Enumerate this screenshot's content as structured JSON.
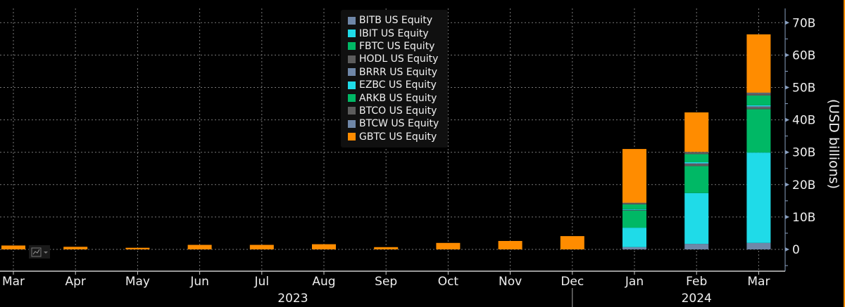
{
  "chart_data": {
    "type": "bar",
    "stacked": true,
    "categories": [
      "Mar",
      "Apr",
      "May",
      "Jun",
      "Jul",
      "Aug",
      "Sep",
      "Oct",
      "Nov",
      "Dec",
      "Jan",
      "Feb",
      "Mar"
    ],
    "year_labels": [
      {
        "label": "2023",
        "span": [
          "Mar",
          "Dec"
        ]
      },
      {
        "label": "2024",
        "span": [
          "Jan",
          "Mar"
        ]
      }
    ],
    "ylabel": "(USD billions)",
    "ylim": [
      -5,
      72
    ],
    "yticks": [
      0,
      10,
      20,
      30,
      40,
      50,
      60,
      70
    ],
    "ytick_labels": [
      "0",
      "10B",
      "20B",
      "30B",
      "40B",
      "50B",
      "60B",
      "70B"
    ],
    "grid": true,
    "legend_position": "top-center",
    "series": [
      {
        "name": "BITB US Equity",
        "color": "#6f87a8",
        "values": [
          0,
          0,
          0,
          0,
          0,
          0,
          0,
          0,
          0,
          0,
          0.7,
          1.7,
          2.0
        ]
      },
      {
        "name": "IBIT US Equity",
        "color": "#1fdbe8",
        "values": [
          0,
          0,
          0,
          0,
          0,
          0,
          0,
          0,
          0,
          0,
          6.0,
          15.7,
          27.9
        ]
      },
      {
        "name": "FBTC US Equity",
        "color": "#00b865",
        "values": [
          0,
          0,
          0,
          0,
          0,
          0,
          0,
          0,
          0,
          0,
          5.3,
          8.3,
          13.4
        ]
      },
      {
        "name": "HODL US Equity",
        "color": "#5c5c5c",
        "values": [
          0,
          0,
          0,
          0,
          0,
          0,
          0,
          0,
          0,
          0,
          0.1,
          0.7,
          0.6
        ]
      },
      {
        "name": "BRRR US Equity",
        "color": "#6f87a8",
        "values": [
          0,
          0,
          0,
          0,
          0,
          0,
          0,
          0,
          0,
          0,
          0.1,
          0.2,
          0.3
        ]
      },
      {
        "name": "EZBC US Equity",
        "color": "#1fdbe8",
        "values": [
          0,
          0,
          0,
          0,
          0,
          0,
          0,
          0,
          0,
          0,
          0.2,
          0.3,
          0.3
        ]
      },
      {
        "name": "ARKB US Equity",
        "color": "#00b865",
        "values": [
          0,
          0,
          0,
          0,
          0,
          0,
          0,
          0,
          0,
          0,
          1.5,
          2.5,
          3.0
        ]
      },
      {
        "name": "BTCO US Equity",
        "color": "#5c5c5c",
        "values": [
          0,
          0,
          0,
          0,
          0,
          0,
          0,
          0,
          0,
          0,
          0.4,
          0.6,
          0.7
        ]
      },
      {
        "name": "BTCW US Equity",
        "color": "#6f87a8",
        "values": [
          0,
          0,
          0,
          0,
          0,
          0,
          0,
          0,
          0,
          0,
          0.1,
          0.1,
          0.2
        ]
      },
      {
        "name": "GBTC US Equity",
        "color": "#ff8c00",
        "values": [
          1.2,
          0.8,
          0.5,
          1.4,
          1.4,
          1.6,
          0.7,
          2.0,
          2.6,
          4.1,
          16.6,
          12.2,
          18.0
        ]
      }
    ]
  }
}
